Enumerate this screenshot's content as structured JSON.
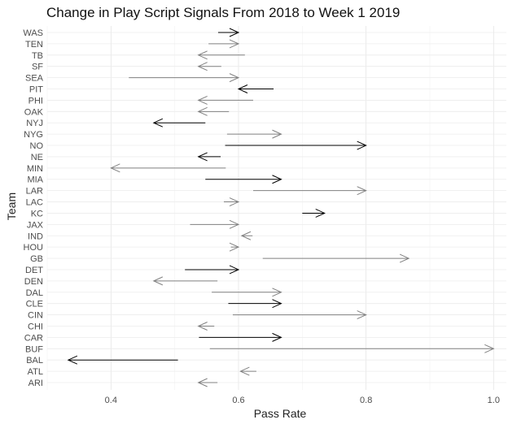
{
  "chart_data": {
    "type": "arrow",
    "title": "Change in Play Script Signals From 2018 to Week 1 2019",
    "xlabel": "Pass Rate",
    "ylabel": "Team",
    "xlim": [
      0.3,
      1.02
    ],
    "xticks": [
      0.4,
      0.6,
      0.8,
      1.0
    ],
    "xtick_labels": [
      "0.4",
      "0.6",
      "0.8",
      "1.0"
    ],
    "grid": true,
    "categories": [
      "ARI",
      "ATL",
      "BAL",
      "BUF",
      "CAR",
      "CHI",
      "CIN",
      "CLE",
      "DAL",
      "DEN",
      "DET",
      "GB",
      "HOU",
      "IND",
      "JAX",
      "KC",
      "LAC",
      "LAR",
      "MIA",
      "MIN",
      "NE",
      "NO",
      "NYG",
      "NYJ",
      "OAK",
      "PHI",
      "PIT",
      "SEA",
      "SF",
      "TB",
      "TEN",
      "WAS"
    ],
    "series": [
      {
        "start": 0.567,
        "end": 0.537,
        "color": "#808080"
      },
      {
        "start": 0.628,
        "end": 0.603,
        "color": "#808080"
      },
      {
        "start": 0.505,
        "end": 0.333,
        "color": "#000000"
      },
      {
        "start": 0.555,
        "end": 1.0,
        "color": "#808080"
      },
      {
        "start": 0.538,
        "end": 0.667,
        "color": "#000000"
      },
      {
        "start": 0.562,
        "end": 0.537,
        "color": "#808080"
      },
      {
        "start": 0.591,
        "end": 0.8,
        "color": "#808080"
      },
      {
        "start": 0.584,
        "end": 0.667,
        "color": "#000000"
      },
      {
        "start": 0.558,
        "end": 0.667,
        "color": "#808080"
      },
      {
        "start": 0.567,
        "end": 0.467,
        "color": "#808080"
      },
      {
        "start": 0.516,
        "end": 0.6,
        "color": "#000000"
      },
      {
        "start": 0.638,
        "end": 0.867,
        "color": "#808080"
      },
      {
        "start": 0.588,
        "end": 0.6,
        "color": "#808080"
      },
      {
        "start": 0.622,
        "end": 0.605,
        "color": "#808080"
      },
      {
        "start": 0.524,
        "end": 0.6,
        "color": "#808080"
      },
      {
        "start": 0.7,
        "end": 0.735,
        "color": "#000000"
      },
      {
        "start": 0.577,
        "end": 0.6,
        "color": "#808080"
      },
      {
        "start": 0.623,
        "end": 0.8,
        "color": "#808080"
      },
      {
        "start": 0.548,
        "end": 0.667,
        "color": "#000000"
      },
      {
        "start": 0.58,
        "end": 0.4,
        "color": "#808080"
      },
      {
        "start": 0.572,
        "end": 0.537,
        "color": "#000000"
      },
      {
        "start": 0.579,
        "end": 0.8,
        "color": "#000000"
      },
      {
        "start": 0.582,
        "end": 0.667,
        "color": "#808080"
      },
      {
        "start": 0.548,
        "end": 0.467,
        "color": "#000000"
      },
      {
        "start": 0.585,
        "end": 0.537,
        "color": "#808080"
      },
      {
        "start": 0.623,
        "end": 0.537,
        "color": "#808080"
      },
      {
        "start": 0.655,
        "end": 0.6,
        "color": "#000000"
      },
      {
        "start": 0.428,
        "end": 0.6,
        "color": "#808080"
      },
      {
        "start": 0.573,
        "end": 0.537,
        "color": "#808080"
      },
      {
        "start": 0.61,
        "end": 0.537,
        "color": "#808080"
      },
      {
        "start": 0.553,
        "end": 0.6,
        "color": "#808080"
      },
      {
        "start": 0.568,
        "end": 0.6,
        "color": "#000000"
      }
    ]
  }
}
